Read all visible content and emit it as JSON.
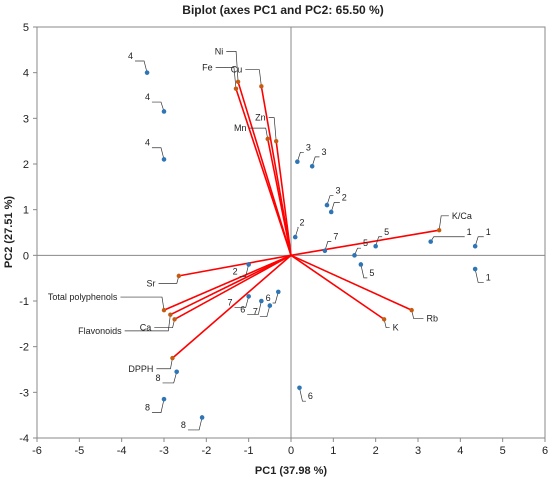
{
  "chart_data": {
    "type": "scatter",
    "title": "Biplot (axes PC1 and PC2: 65.50 %)",
    "xlabel": "PC1 (37.98 %)",
    "ylabel": "PC2 (27.51 %)",
    "xlim": [
      -6,
      6
    ],
    "ylim": [
      -4,
      5
    ],
    "xticks": [
      "-6",
      "-5",
      "-4",
      "-3",
      "-2",
      "-1",
      "0",
      "1",
      "2",
      "3",
      "4",
      "5",
      "6"
    ],
    "yticks": [
      "-4",
      "-3",
      "-2",
      "-1",
      "0",
      "1",
      "2",
      "3",
      "4",
      "5"
    ],
    "grid": false,
    "legend": "none",
    "colors": {
      "observation": "#2e75b6",
      "variable_line": "#ff0000",
      "variable_point": "#c55a11"
    },
    "series": [
      {
        "points": [
          {
            "label": "1",
            "x": 3.3,
            "y": 0.3,
            "lx": 4.15,
            "ly": 0.45
          },
          {
            "label": "1",
            "x": 4.35,
            "y": 0.2,
            "lx": 4.6,
            "ly": 0.45
          },
          {
            "label": "1",
            "x": 4.35,
            "y": -0.3,
            "lx": 4.6,
            "ly": -0.55
          },
          {
            "label": "2",
            "x": -1.0,
            "y": -0.2,
            "lx": -1.38,
            "ly": -0.42
          },
          {
            "label": "2",
            "x": 0.1,
            "y": 0.4,
            "lx": 0.2,
            "ly": 0.65
          },
          {
            "label": "2",
            "x": 0.95,
            "y": 0.95,
            "lx": 1.2,
            "ly": 1.2
          },
          {
            "label": "3",
            "x": 0.15,
            "y": 2.05,
            "lx": 0.35,
            "ly": 2.3
          },
          {
            "label": "3",
            "x": 0.5,
            "y": 1.95,
            "lx": 0.72,
            "ly": 2.2
          },
          {
            "label": "3",
            "x": 0.85,
            "y": 1.1,
            "lx": 1.05,
            "ly": 1.35
          },
          {
            "label": "4",
            "x": -3.4,
            "y": 4.0,
            "lx": -3.85,
            "ly": 4.3
          },
          {
            "label": "4",
            "x": -3.0,
            "y": 3.15,
            "lx": -3.45,
            "ly": 3.4
          },
          {
            "label": "4",
            "x": -3.0,
            "y": 2.1,
            "lx": -3.45,
            "ly": 2.4
          },
          {
            "label": "5",
            "x": 1.5,
            "y": 0.0,
            "lx": 1.7,
            "ly": 0.2
          },
          {
            "label": "5",
            "x": 2.0,
            "y": 0.2,
            "lx": 2.2,
            "ly": 0.45
          },
          {
            "label": "5",
            "x": 1.65,
            "y": -0.2,
            "lx": 1.85,
            "ly": -0.45
          },
          {
            "label": "6",
            "x": -0.7,
            "y": -1.0,
            "lx": -1.2,
            "ly": -1.25
          },
          {
            "label": "6",
            "x": -0.3,
            "y": -0.8,
            "lx": -0.6,
            "ly": -1.0
          },
          {
            "label": "6",
            "x": 0.2,
            "y": -2.9,
            "lx": 0.4,
            "ly": -3.15
          },
          {
            "label": "7",
            "x": -1.0,
            "y": -0.9,
            "lx": -1.5,
            "ly": -1.1
          },
          {
            "label": "7",
            "x": -0.5,
            "y": -1.1,
            "lx": -0.9,
            "ly": -1.3
          },
          {
            "label": "7",
            "x": 0.8,
            "y": 0.1,
            "lx": 1.0,
            "ly": 0.35
          },
          {
            "label": "8",
            "x": -2.7,
            "y": -2.55,
            "lx": -3.2,
            "ly": -2.75
          },
          {
            "label": "8",
            "x": -3.0,
            "y": -3.15,
            "lx": -3.45,
            "ly": -3.4
          },
          {
            "label": "8",
            "x": -2.1,
            "y": -3.55,
            "lx": -2.6,
            "ly": -3.78
          }
        ]
      }
    ],
    "variables": [
      {
        "label": "Ni",
        "x": -1.25,
        "y": 3.8,
        "lx": -1.6,
        "ly": 4.4
      },
      {
        "label": "Fe",
        "x": -1.3,
        "y": 3.65,
        "lx": -1.85,
        "ly": 4.05
      },
      {
        "label": "Cu",
        "x": -0.7,
        "y": 3.7,
        "lx": -1.15,
        "ly": 4.0
      },
      {
        "label": "Mn",
        "x": -0.55,
        "y": 2.55,
        "lx": -1.05,
        "ly": 2.72
      },
      {
        "label": "Zn",
        "x": -0.35,
        "y": 2.5,
        "lx": -0.6,
        "ly": 2.95
      },
      {
        "label": "K/Ca",
        "x": 3.5,
        "y": 0.55,
        "lx": 3.8,
        "ly": 0.8
      },
      {
        "label": "Rb",
        "x": 2.85,
        "y": -1.2,
        "lx": 3.2,
        "ly": -1.45
      },
      {
        "label": "K",
        "x": 2.2,
        "y": -1.4,
        "lx": 2.4,
        "ly": -1.65
      },
      {
        "label": "Sr",
        "x": -2.65,
        "y": -0.45,
        "lx": -3.2,
        "ly": -0.68
      },
      {
        "label": "Total polyphenols",
        "x": -3.0,
        "y": -1.2,
        "lx": -4.1,
        "ly": -0.98
      },
      {
        "label": "Ca",
        "x": -2.75,
        "y": -1.4,
        "lx": -3.3,
        "ly": -1.65
      },
      {
        "label": "Flavonoids",
        "x": -2.85,
        "y": -1.3,
        "lx": -4.0,
        "ly": -1.72
      },
      {
        "label": "DPPH",
        "x": -2.8,
        "y": -2.25,
        "lx": -3.25,
        "ly": -2.55
      }
    ]
  }
}
